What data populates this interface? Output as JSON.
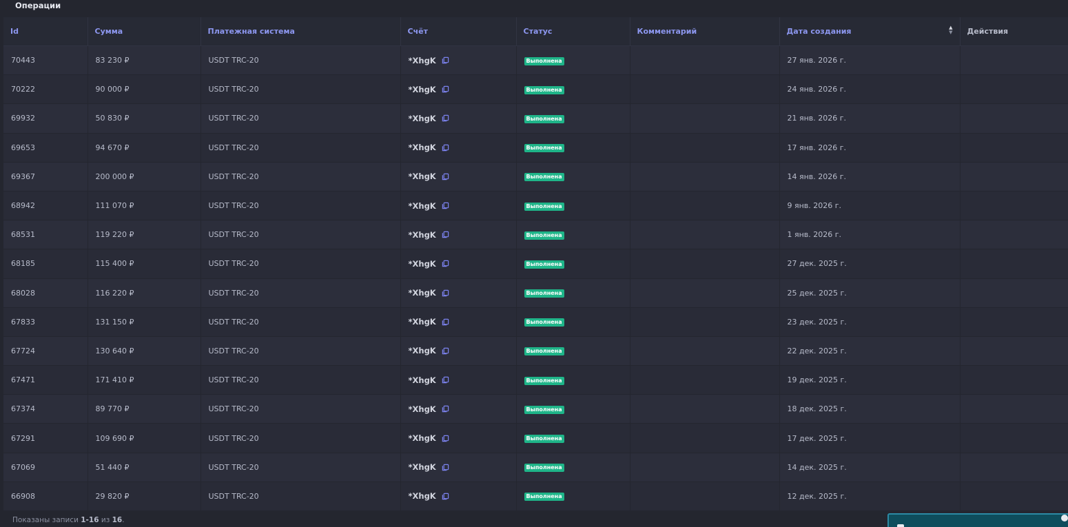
{
  "section_title": "Операции",
  "columns": {
    "id": "Id",
    "amount": "Сумма",
    "payment_system": "Платежная система",
    "account": "Счёт",
    "status": "Статус",
    "comment": "Комментарий",
    "created": "Дата создания",
    "actions": "Действия"
  },
  "sort": {
    "column": "created",
    "direction": "desc"
  },
  "rows": [
    {
      "id": "70443",
      "amount": "83 230 ₽",
      "system": "USDT TRC-20",
      "account": "*XhgK",
      "status": "Выполнена",
      "comment": "",
      "date": "27 янв. 2026 г."
    },
    {
      "id": "70222",
      "amount": "90 000 ₽",
      "system": "USDT TRC-20",
      "account": "*XhgK",
      "status": "Выполнена",
      "comment": "",
      "date": "24 янв. 2026 г."
    },
    {
      "id": "69932",
      "amount": "50 830 ₽",
      "system": "USDT TRC-20",
      "account": "*XhgK",
      "status": "Выполнена",
      "comment": "",
      "date": "21 янв. 2026 г."
    },
    {
      "id": "69653",
      "amount": "94 670 ₽",
      "system": "USDT TRC-20",
      "account": "*XhgK",
      "status": "Выполнена",
      "comment": "",
      "date": "17 янв. 2026 г."
    },
    {
      "id": "69367",
      "amount": "200 000 ₽",
      "system": "USDT TRC-20",
      "account": "*XhgK",
      "status": "Выполнена",
      "comment": "",
      "date": "14 янв. 2026 г."
    },
    {
      "id": "68942",
      "amount": "111 070 ₽",
      "system": "USDT TRC-20",
      "account": "*XhgK",
      "status": "Выполнена",
      "comment": "",
      "date": "9 янв. 2026 г."
    },
    {
      "id": "68531",
      "amount": "119 220 ₽",
      "system": "USDT TRC-20",
      "account": "*XhgK",
      "status": "Выполнена",
      "comment": "",
      "date": "1 янв. 2026 г."
    },
    {
      "id": "68185",
      "amount": "115 400 ₽",
      "system": "USDT TRC-20",
      "account": "*XhgK",
      "status": "Выполнена",
      "comment": "",
      "date": "27 дек. 2025 г."
    },
    {
      "id": "68028",
      "amount": "116 220 ₽",
      "system": "USDT TRC-20",
      "account": "*XhgK",
      "status": "Выполнена",
      "comment": "",
      "date": "25 дек. 2025 г."
    },
    {
      "id": "67833",
      "amount": "131 150 ₽",
      "system": "USDT TRC-20",
      "account": "*XhgK",
      "status": "Выполнена",
      "comment": "",
      "date": "23 дек. 2025 г."
    },
    {
      "id": "67724",
      "amount": "130 640 ₽",
      "system": "USDT TRC-20",
      "account": "*XhgK",
      "status": "Выполнена",
      "comment": "",
      "date": "22 дек. 2025 г."
    },
    {
      "id": "67471",
      "amount": "171 410 ₽",
      "system": "USDT TRC-20",
      "account": "*XhgK",
      "status": "Выполнена",
      "comment": "",
      "date": "19 дек. 2025 г."
    },
    {
      "id": "67374",
      "amount": "89 770 ₽",
      "system": "USDT TRC-20",
      "account": "*XhgK",
      "status": "Выполнена",
      "comment": "",
      "date": "18 дек. 2025 г."
    },
    {
      "id": "67291",
      "amount": "109 690 ₽",
      "system": "USDT TRC-20",
      "account": "*XhgK",
      "status": "Выполнена",
      "comment": "",
      "date": "17 дек. 2025 г."
    },
    {
      "id": "67069",
      "amount": "51 440 ₽",
      "system": "USDT TRC-20",
      "account": "*XhgK",
      "status": "Выполнена",
      "comment": "",
      "date": "14 дек. 2025 г."
    },
    {
      "id": "66908",
      "amount": "29 820 ₽",
      "system": "USDT TRC-20",
      "account": "*XhgK",
      "status": "Выполнена",
      "comment": "",
      "date": "12 дек. 2025 г."
    }
  ],
  "footer": {
    "prefix": "Показаны записи ",
    "range": "1-16",
    "middle": " из ",
    "total": "16",
    "suffix": "."
  },
  "icons": {
    "copy": "copy-icon",
    "sort": "sort-arrows-icon"
  },
  "colors": {
    "header_text": "#8d97f0",
    "status_done": "#1fb589",
    "copy_icon": "#7c83f0"
  }
}
